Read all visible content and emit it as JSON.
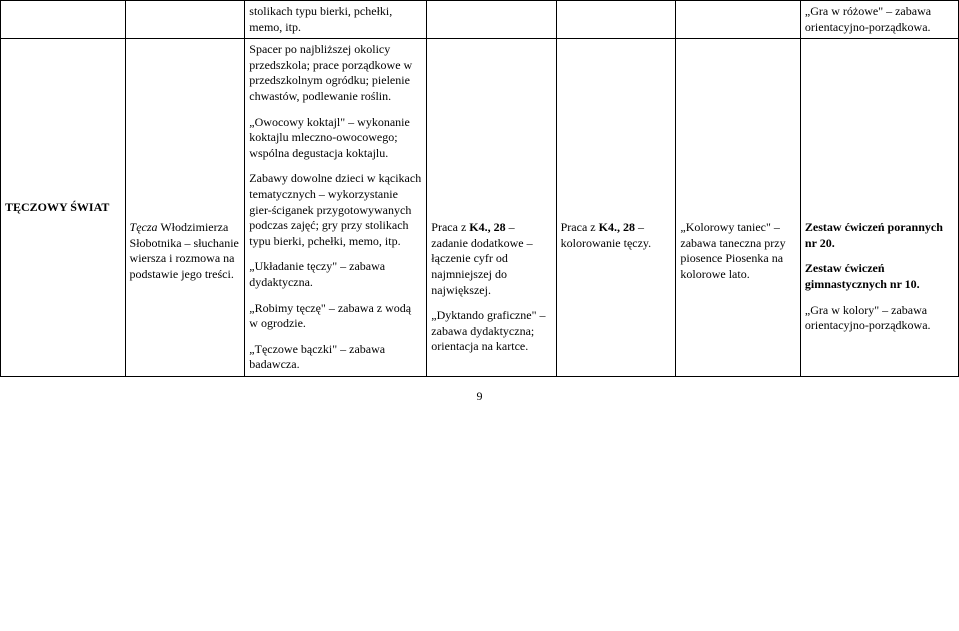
{
  "colgroup": {
    "c1_width": "13%",
    "c2_width": "12.5%",
    "c3_width": "19%",
    "c4_width": "13.5%",
    "c5_width": "12.5%",
    "c6_width": "13%",
    "c7_width": "16.5%"
  },
  "row1": {
    "c3": "stolikach typu bierki, pchełki, memo, itp.",
    "c7": "„Gra w różowe\" – zabawa orientacyjno-porządkowa."
  },
  "row2": {
    "label": "TĘCZOWY ŚWIAT",
    "c2_italic": "Tęcza",
    "c2_rest": " Włodzimierza Słobotnika – słuchanie wiersza i  rozmowa na podstawie jego treści.",
    "c3_p1": "Spacer po najbliższej okolicy przedszkola; prace porządkowe w przedszkolnym ogródku; pielenie chwastów, podlewanie roślin.",
    "c3_p2": "„Owocowy koktajl\" – wykonanie koktajlu mleczno-owocowego; wspólna degustacja koktajlu.",
    "c3_p3": "Zabawy dowolne dzieci w kącikach tematycznych – wykorzystanie gier-ściganek przygotowywanych podczas zajęć; gry przy stolikach typu bierki, pchełki, memo, itp.",
    "c3_p4": "„Układanie tęczy\" – zabawa dydaktyczna.",
    "c3_p5": "„Robimy tęczę\" – zabawa z wodą w ogrodzie.",
    "c3_p6": "„Tęczowe bączki\" – zabawa badawcza.",
    "c4_p1a": "Praca z ",
    "c4_p1b": "K4., 28",
    "c4_p1c": " – zadanie dodatkowe – łączenie cyfr od najmniejszej do największej.",
    "c4_p2": "„Dyktando graficzne\" – zabawa dydaktyczna; orientacja na kartce.",
    "c5a": "Praca z ",
    "c5b": "K4., 28",
    "c5c": " – kolorowanie tęczy.",
    "c6": "„Kolorowy taniec\" – zabawa taneczna przy piosence Piosenka na kolorowe lato.",
    "c7_p1": "Zestaw ćwiczeń porannych nr 20.",
    "c7_p2": "Zestaw ćwiczeń gimnastycznych nr 10.",
    "c7_p3": "„Gra w kolory\" – zabawa orientacyjno-porządkowa."
  },
  "page_number": "9"
}
